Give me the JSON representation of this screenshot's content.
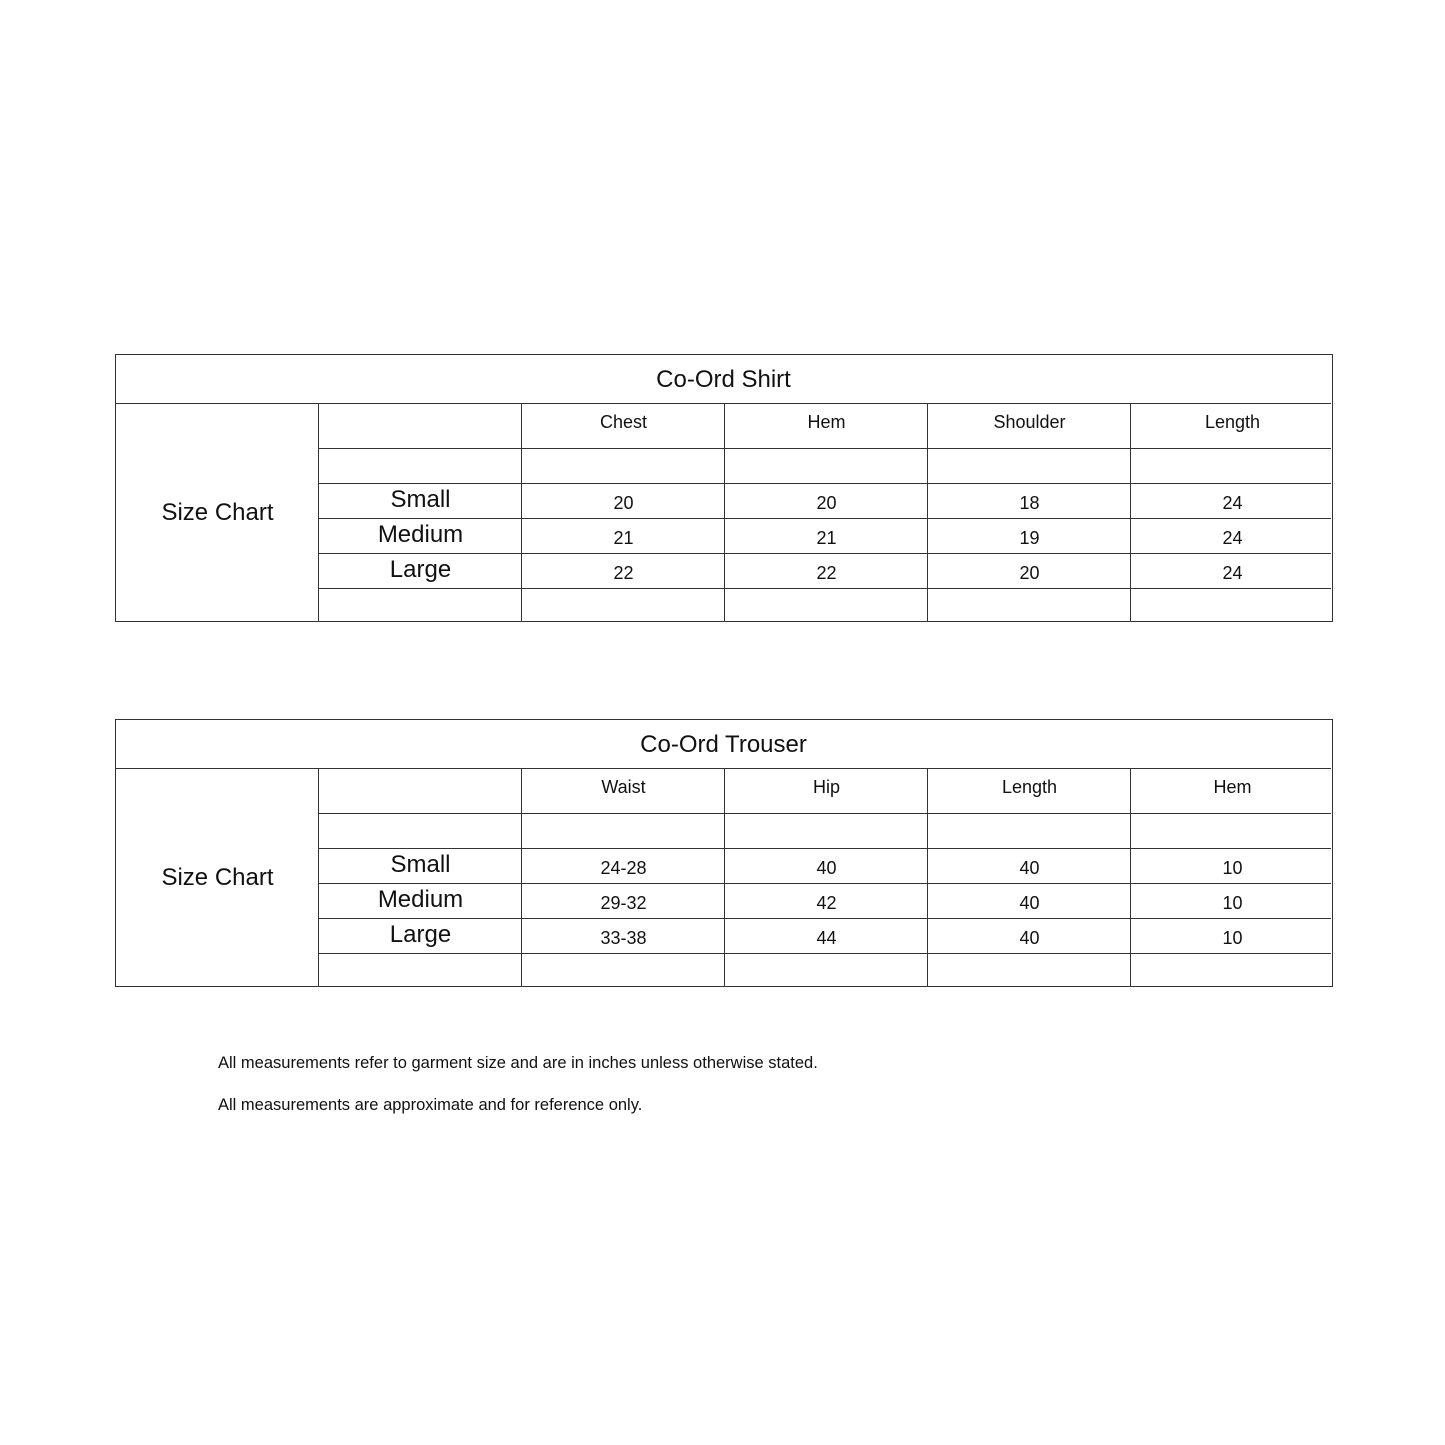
{
  "tables": [
    {
      "title": "Co-Ord Shirt",
      "row_label": "Size Chart",
      "columns": [
        "Chest",
        "Hem",
        "Shoulder",
        "Length"
      ],
      "rows": [
        {
          "size": "Small",
          "values": [
            "20",
            "20",
            "18",
            "24"
          ]
        },
        {
          "size": "Medium",
          "values": [
            "21",
            "21",
            "19",
            "24"
          ]
        },
        {
          "size": "Large",
          "values": [
            "22",
            "22",
            "20",
            "24"
          ]
        }
      ]
    },
    {
      "title": "Co-Ord Trouser",
      "row_label": "Size Chart",
      "columns": [
        "Waist",
        "Hip",
        "Length",
        "Hem"
      ],
      "rows": [
        {
          "size": "Small",
          "values": [
            "24-28",
            "40",
            "40",
            "10"
          ]
        },
        {
          "size": "Medium",
          "values": [
            "29-32",
            "42",
            "40",
            "10"
          ]
        },
        {
          "size": "Large",
          "values": [
            "33-38",
            "44",
            "40",
            "10"
          ]
        }
      ]
    }
  ],
  "notes": [
    "All measurements refer to garment size and are in inches unless otherwise stated.",
    "All measurements are approximate and for reference only."
  ]
}
